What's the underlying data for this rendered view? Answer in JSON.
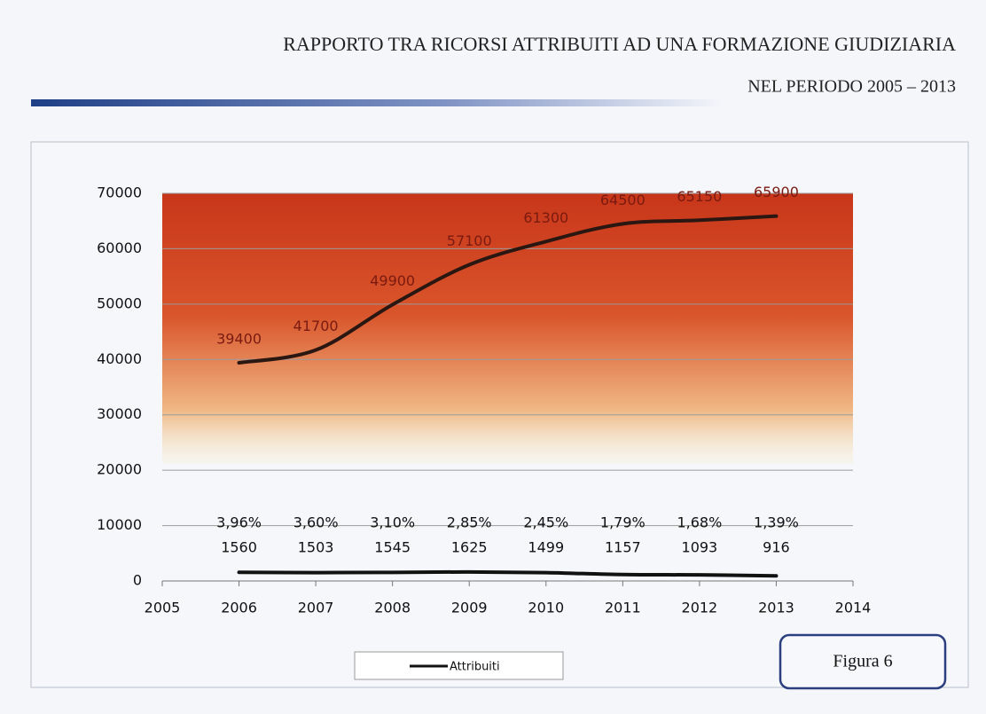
{
  "chart_data": {
    "type": "line",
    "title": "RAPPORTO TRA  RICORSI ATTRIBUITI AD UNA FORMAZIONE GIUDIZIARIA",
    "subtitle": "NEL PERIODO 2005 – 2013",
    "x": [
      2006,
      2007,
      2008,
      2009,
      2010,
      2011,
      2012,
      2013
    ],
    "series": [
      {
        "color": "#2a1712",
        "values": [
          39400,
          41700,
          49900,
          57100,
          61300,
          64500,
          65150,
          65900
        ]
      },
      {
        "name": "Attribuiti",
        "color": "#111111",
        "values": [
          1560,
          1503,
          1545,
          1625,
          1499,
          1157,
          1093,
          916
        ],
        "percentages": [
          "3,96%",
          "3,60%",
          "3,10%",
          "2,85%",
          "2,45%",
          "1,79%",
          "1,68%",
          "1,39%"
        ]
      }
    ],
    "xlim": [
      2005,
      2014
    ],
    "xticks": [
      2005,
      2006,
      2007,
      2008,
      2009,
      2010,
      2011,
      2012,
      2013,
      2014
    ],
    "ylim": [
      0,
      70000
    ],
    "yticks": [
      0,
      10000,
      20000,
      30000,
      40000,
      50000,
      60000,
      70000
    ],
    "grid": true,
    "legend": "bottom",
    "figure_label": "Figura 6"
  }
}
